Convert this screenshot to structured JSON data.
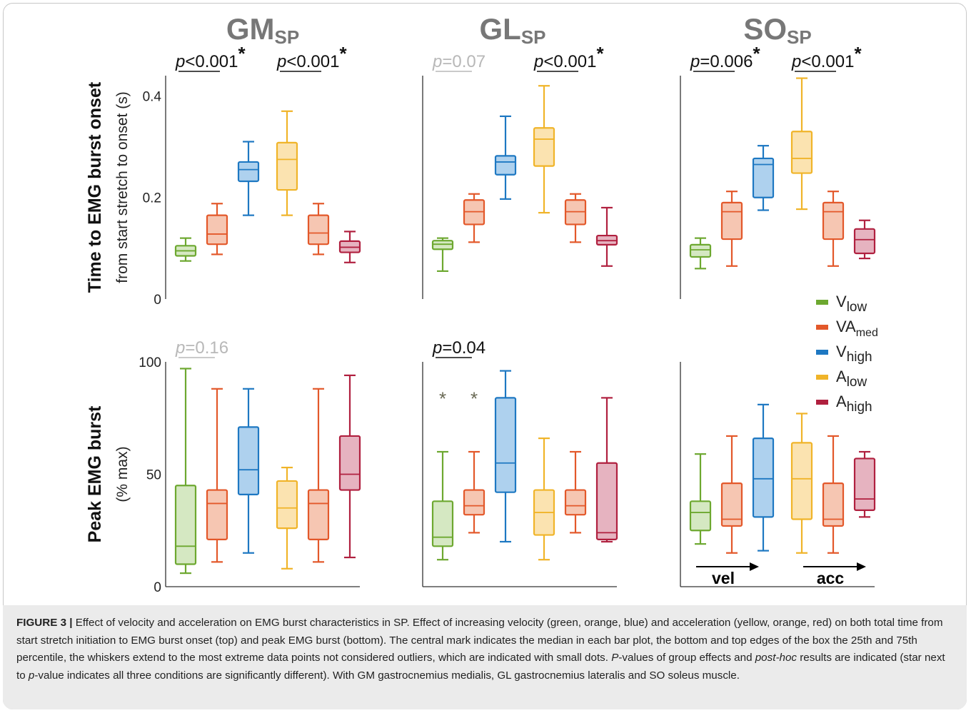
{
  "chart_data": {
    "type": "box",
    "columns": [
      {
        "title_main": "GM",
        "title_sub": "SP"
      },
      {
        "title_main": "GL",
        "title_sub": "SP"
      },
      {
        "title_main": "SO",
        "title_sub": "SP"
      }
    ],
    "rows": [
      {
        "ylabel": "Time to EMG burst onset",
        "ylabel_sub": "from start stretch to onset (s)",
        "ylim": [
          0,
          0.44
        ],
        "yticks": [
          0,
          0.2,
          0.4
        ],
        "ytick_labels": [
          "0",
          "0.2",
          "0.4"
        ]
      },
      {
        "ylabel": "Peak EMG burst",
        "ylabel_sub": "(% max)",
        "ylim": [
          0,
          100
        ],
        "yticks": [
          0,
          50,
          100
        ],
        "ytick_labels": [
          "0",
          "50",
          "100"
        ]
      }
    ],
    "series": [
      {
        "name": "low",
        "base": "V",
        "color": "#6da830",
        "fill": "#d5e8c2"
      },
      {
        "name": "med",
        "base": "VA",
        "color": "#e3582a",
        "fill": "#f6c6b2"
      },
      {
        "name": "high",
        "base": "V",
        "color": "#1e78c2",
        "fill": "#aed1ee"
      },
      {
        "name": "low",
        "base": "A",
        "color": "#f0b429",
        "fill": "#fbe3b0"
      },
      {
        "name": "high",
        "base": "A",
        "color": "#b0203f",
        "fill": "#e6b3c0"
      }
    ],
    "panels": [
      {
        "row": 0,
        "col": 0,
        "boxes": [
          {
            "series": 0,
            "min": 0.075,
            "q1": 0.085,
            "median": 0.095,
            "q3": 0.105,
            "max": 0.12
          },
          {
            "series": 1,
            "min": 0.088,
            "q1": 0.108,
            "median": 0.128,
            "q3": 0.165,
            "max": 0.188
          },
          {
            "series": 2,
            "min": 0.165,
            "q1": 0.232,
            "median": 0.255,
            "q3": 0.27,
            "max": 0.31
          },
          {
            "series": 3,
            "min": 0.165,
            "q1": 0.215,
            "median": 0.275,
            "q3": 0.308,
            "max": 0.37
          },
          {
            "series": 1,
            "min": 0.088,
            "q1": 0.108,
            "median": 0.13,
            "q3": 0.165,
            "max": 0.188
          },
          {
            "series": 4,
            "min": 0.072,
            "q1": 0.092,
            "median": 0.102,
            "q3": 0.114,
            "max": 0.133
          }
        ],
        "sig": [
          {
            "text": "p<0.001",
            "star": "*",
            "color": "#111111",
            "group": 0
          },
          {
            "text": "p<0.001",
            "star": "*",
            "color": "#111111",
            "group": 1
          }
        ]
      },
      {
        "row": 0,
        "col": 1,
        "boxes": [
          {
            "series": 0,
            "min": 0.055,
            "q1": 0.098,
            "median": 0.108,
            "q3": 0.115,
            "max": 0.12
          },
          {
            "series": 1,
            "min": 0.112,
            "q1": 0.147,
            "median": 0.172,
            "q3": 0.195,
            "max": 0.207
          },
          {
            "series": 2,
            "min": 0.197,
            "q1": 0.245,
            "median": 0.27,
            "q3": 0.282,
            "max": 0.36
          },
          {
            "series": 3,
            "min": 0.17,
            "q1": 0.262,
            "median": 0.315,
            "q3": 0.337,
            "max": 0.42
          },
          {
            "series": 1,
            "min": 0.112,
            "q1": 0.147,
            "median": 0.172,
            "q3": 0.195,
            "max": 0.207
          },
          {
            "series": 4,
            "min": 0.065,
            "q1": 0.107,
            "median": 0.115,
            "q3": 0.125,
            "max": 0.18
          }
        ],
        "sig": [
          {
            "text": "p=0.07",
            "star": "",
            "color": "#b8b8b8",
            "group": 0
          },
          {
            "text": "p<0.001",
            "star": "*",
            "color": "#111111",
            "group": 1
          }
        ]
      },
      {
        "row": 0,
        "col": 2,
        "boxes": [
          {
            "series": 0,
            "min": 0.06,
            "q1": 0.083,
            "median": 0.097,
            "q3": 0.107,
            "max": 0.12
          },
          {
            "series": 1,
            "min": 0.065,
            "q1": 0.118,
            "median": 0.172,
            "q3": 0.19,
            "max": 0.212
          },
          {
            "series": 2,
            "min": 0.175,
            "q1": 0.2,
            "median": 0.265,
            "q3": 0.277,
            "max": 0.302
          },
          {
            "series": 3,
            "min": 0.177,
            "q1": 0.248,
            "median": 0.277,
            "q3": 0.33,
            "max": 0.435
          },
          {
            "series": 1,
            "min": 0.065,
            "q1": 0.118,
            "median": 0.172,
            "q3": 0.19,
            "max": 0.212
          },
          {
            "series": 4,
            "min": 0.08,
            "q1": 0.09,
            "median": 0.117,
            "q3": 0.138,
            "max": 0.155
          }
        ],
        "sig": [
          {
            "text": "p=0.006",
            "star": "*",
            "color": "#111111",
            "group": 0
          },
          {
            "text": "p<0.001",
            "star": "*",
            "color": "#111111",
            "group": 1
          }
        ]
      },
      {
        "row": 1,
        "col": 0,
        "boxes": [
          {
            "series": 0,
            "min": 6,
            "q1": 10,
            "median": 18,
            "q3": 45,
            "max": 97
          },
          {
            "series": 1,
            "min": 11,
            "q1": 21,
            "median": 37,
            "q3": 43,
            "max": 88
          },
          {
            "series": 2,
            "min": 15,
            "q1": 41,
            "median": 52,
            "q3": 71,
            "max": 88
          },
          {
            "series": 3,
            "min": 8,
            "q1": 26,
            "median": 35,
            "q3": 47,
            "max": 53
          },
          {
            "series": 1,
            "min": 11,
            "q1": 21,
            "median": 37,
            "q3": 43,
            "max": 88
          },
          {
            "series": 4,
            "min": 13,
            "q1": 43,
            "median": 50,
            "q3": 67,
            "max": 94
          }
        ],
        "sig": [
          {
            "text": "p=0.16",
            "star": "",
            "color": "#b8b8b8",
            "group": 0
          }
        ]
      },
      {
        "row": 1,
        "col": 1,
        "boxes": [
          {
            "series": 0,
            "min": 12,
            "q1": 18,
            "median": 22,
            "q3": 38,
            "max": 60
          },
          {
            "series": 1,
            "min": 24,
            "q1": 32,
            "median": 36,
            "q3": 43,
            "max": 60
          },
          {
            "series": 2,
            "min": 20,
            "q1": 42,
            "median": 55,
            "q3": 84,
            "max": 96
          },
          {
            "series": 3,
            "min": 12,
            "q1": 23,
            "median": 33,
            "q3": 43,
            "max": 66
          },
          {
            "series": 1,
            "min": 24,
            "q1": 32,
            "median": 36,
            "q3": 43,
            "max": 60
          },
          {
            "series": 4,
            "min": 20,
            "q1": 21,
            "median": 24,
            "q3": 55,
            "max": 84
          }
        ],
        "outliers": [
          {
            "box": 0,
            "value": 85
          },
          {
            "box": 1,
            "value": 85
          }
        ],
        "sig": [
          {
            "text": "p=0.04",
            "star": "",
            "color": "#111111",
            "group": 0
          }
        ]
      },
      {
        "row": 1,
        "col": 2,
        "boxes": [
          {
            "series": 0,
            "min": 19,
            "q1": 25,
            "median": 33,
            "q3": 38,
            "max": 59
          },
          {
            "series": 1,
            "min": 15,
            "q1": 27,
            "median": 30,
            "q3": 46,
            "max": 67
          },
          {
            "series": 2,
            "min": 16,
            "q1": 31,
            "median": 48,
            "q3": 66,
            "max": 81
          },
          {
            "series": 3,
            "min": 15,
            "q1": 30,
            "median": 48,
            "q3": 64,
            "max": 77
          },
          {
            "series": 1,
            "min": 15,
            "q1": 27,
            "median": 30,
            "q3": 46,
            "max": 67
          },
          {
            "series": 4,
            "min": 31,
            "q1": 34,
            "median": 39,
            "q3": 57,
            "max": 60
          }
        ],
        "arrows": [
          {
            "label": "vel",
            "group": 0
          },
          {
            "label": "acc",
            "group": 1
          }
        ]
      }
    ],
    "grid": false,
    "legend": {
      "position": "right-middle"
    }
  },
  "caption": {
    "label": "FIGURE 3 |",
    "text_1": " Effect of velocity and acceleration on EMG burst characteristics in SP. Effect of increasing velocity (green, orange, blue) and acceleration (yellow, orange, red) on both total time from start stretch initiation to EMG burst onset (top) and peak EMG burst (bottom). The central mark indicates the median in each bar plot, the bottom and top edges of the box the 25th and 75th percentile, the whiskers extend to the most extreme data points not considered outliers, which are indicated with small dots. ",
    "p_italic": "P",
    "text_2": "-values of group effects and ",
    "post_hoc": "post-hoc",
    "text_3": " results are indicated (star next to ",
    "p_italic_2": "p",
    "text_4": "-value indicates all three conditions are significantly different). With GM gastrocnemius medialis, GL gastrocnemius lateralis and SO soleus muscle."
  }
}
